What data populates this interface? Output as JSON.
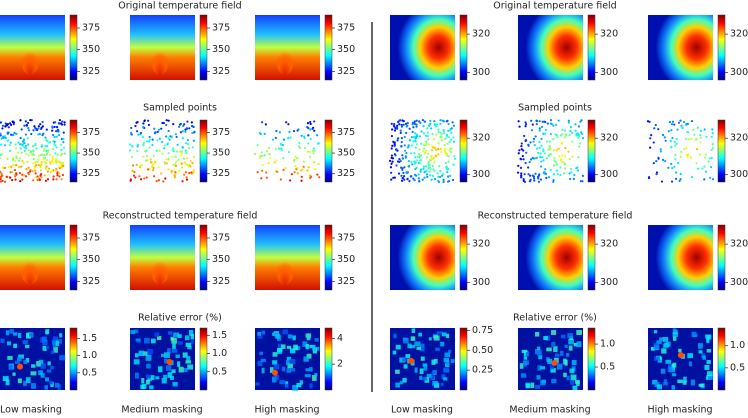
{
  "groups": [
    {
      "rows": [
        {
          "title": "Original temperature field",
          "colorbars": [
            {
              "range": [
                315,
                390
              ],
              "ticks": [
                325,
                350,
                375
              ]
            },
            {
              "range": [
                315,
                390
              ],
              "ticks": [
                325,
                350,
                375
              ]
            },
            {
              "range": [
                315,
                390
              ],
              "ticks": [
                325,
                350,
                375
              ]
            }
          ]
        },
        {
          "title": "Sampled points",
          "colorbars": [
            {
              "range": [
                315,
                390
              ],
              "ticks": [
                325,
                350,
                375
              ]
            },
            {
              "range": [
                315,
                390
              ],
              "ticks": [
                325,
                350,
                375
              ]
            },
            {
              "range": [
                315,
                390
              ],
              "ticks": [
                325,
                350,
                375
              ]
            }
          ]
        },
        {
          "title": "Reconstructed temperature field",
          "colorbars": [
            {
              "range": [
                315,
                390
              ],
              "ticks": [
                325,
                350,
                375
              ]
            },
            {
              "range": [
                315,
                390
              ],
              "ticks": [
                325,
                350,
                375
              ]
            },
            {
              "range": [
                315,
                390
              ],
              "ticks": [
                325,
                350,
                375
              ]
            }
          ]
        },
        {
          "title": "Relative error (%)",
          "colorbars": [
            {
              "range": [
                0,
                1.8
              ],
              "ticks": [
                0.5,
                {
                  "value": 1,
                  "label": "1.0"
                },
                1.5
              ]
            },
            {
              "range": [
                0,
                1.7
              ],
              "ticks": [
                0.5,
                {
                  "value": 1,
                  "label": "1.0"
                },
                1.5
              ]
            },
            {
              "range": [
                0,
                4.8
              ],
              "ticks": [
                2,
                4
              ]
            }
          ]
        }
      ],
      "columns": [
        "Low masking",
        "Medium masking",
        "High masking"
      ]
    },
    {
      "rows": [
        {
          "title": "Original temperature field",
          "colorbars": [
            {
              "range": [
                296,
                330
              ],
              "ticks": [
                300,
                320
              ]
            },
            {
              "range": [
                296,
                330
              ],
              "ticks": [
                300,
                320
              ]
            },
            {
              "range": [
                296,
                330
              ],
              "ticks": [
                300,
                320
              ]
            }
          ]
        },
        {
          "title": "Sampled points",
          "colorbars": [
            {
              "range": [
                296,
                330
              ],
              "ticks": [
                300,
                320
              ]
            },
            {
              "range": [
                296,
                330
              ],
              "ticks": [
                300,
                320
              ]
            },
            {
              "range": [
                296,
                330
              ],
              "ticks": [
                300,
                320
              ]
            }
          ]
        },
        {
          "title": "Reconstructed temperature field",
          "colorbars": [
            {
              "range": [
                296,
                330
              ],
              "ticks": [
                300,
                320
              ]
            },
            {
              "range": [
                296,
                330
              ],
              "ticks": [
                300,
                320
              ]
            },
            {
              "range": [
                296,
                330
              ],
              "ticks": [
                300,
                320
              ]
            }
          ]
        },
        {
          "title": "Relative error (%)",
          "colorbars": [
            {
              "range": [
                0,
                0.78
              ],
              "ticks": [
                0.25,
                {
                  "value": 0.5,
                  "label": "0.50"
                },
                0.75
              ]
            },
            {
              "range": [
                0,
                1.35
              ],
              "ticks": [
                0.5,
                {
                  "value": 1,
                  "label": "1.0"
                }
              ]
            },
            {
              "range": [
                0,
                1.4
              ],
              "ticks": [
                0.5,
                {
                  "value": 1,
                  "label": "1.0"
                }
              ]
            }
          ]
        }
      ],
      "columns": [
        "Low masking",
        "Medium masking",
        "High masking"
      ]
    }
  ]
}
